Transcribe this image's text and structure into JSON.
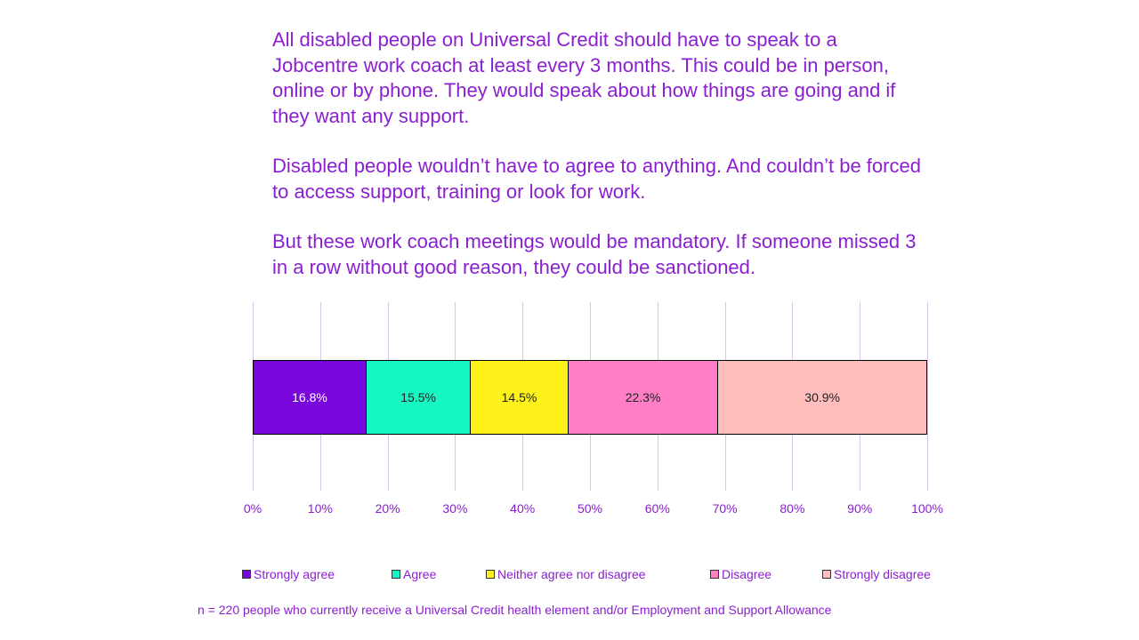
{
  "intro": {
    "p1": "All disabled people on Universal Credit should have to speak to a Jobcentre work coach at least every 3 months. This could be in person, online or by phone. They would speak about how things are going and if they want any support.",
    "p2": "Disabled people wouldn’t have to agree to anything. And couldn’t be forced to access support, training or look for work.",
    "p3": "But these work coach meetings would be mandatory. If someone missed 3 in a row without good reason, they could be sanctioned."
  },
  "chart_data": {
    "type": "bar",
    "orientation": "horizontal",
    "stacked": true,
    "title": "",
    "xlabel": "",
    "ylabel": "",
    "xlim": [
      0,
      100
    ],
    "grid": true,
    "legend_position": "bottom",
    "ticks": [
      "0%",
      "10%",
      "20%",
      "30%",
      "40%",
      "50%",
      "60%",
      "70%",
      "80%",
      "90%",
      "100%"
    ],
    "categories": [
      ""
    ],
    "series": [
      {
        "name": "Strongly agree",
        "values": [
          16.8
        ],
        "label": "16.8%",
        "color": "#7a08dc",
        "text_color": "#ffffff"
      },
      {
        "name": "Agree",
        "values": [
          15.5
        ],
        "label": "15.5%",
        "color": "#17f7c3",
        "text_color": "#222222"
      },
      {
        "name": "Neither agree nor disagree",
        "values": [
          14.5
        ],
        "label": "14.5%",
        "color": "#fff21a",
        "text_color": "#222222"
      },
      {
        "name": "Disagree",
        "values": [
          22.3
        ],
        "label": "22.3%",
        "color": "#ff7ec6",
        "text_color": "#222222"
      },
      {
        "name": "Strongly disagree",
        "values": [
          30.9
        ],
        "label": "30.9%",
        "color": "#ffbdbb",
        "text_color": "#222222"
      }
    ]
  },
  "note": "n = 220 people who currently receive a Universal Credit health element and/or Employment and Support Allowance"
}
